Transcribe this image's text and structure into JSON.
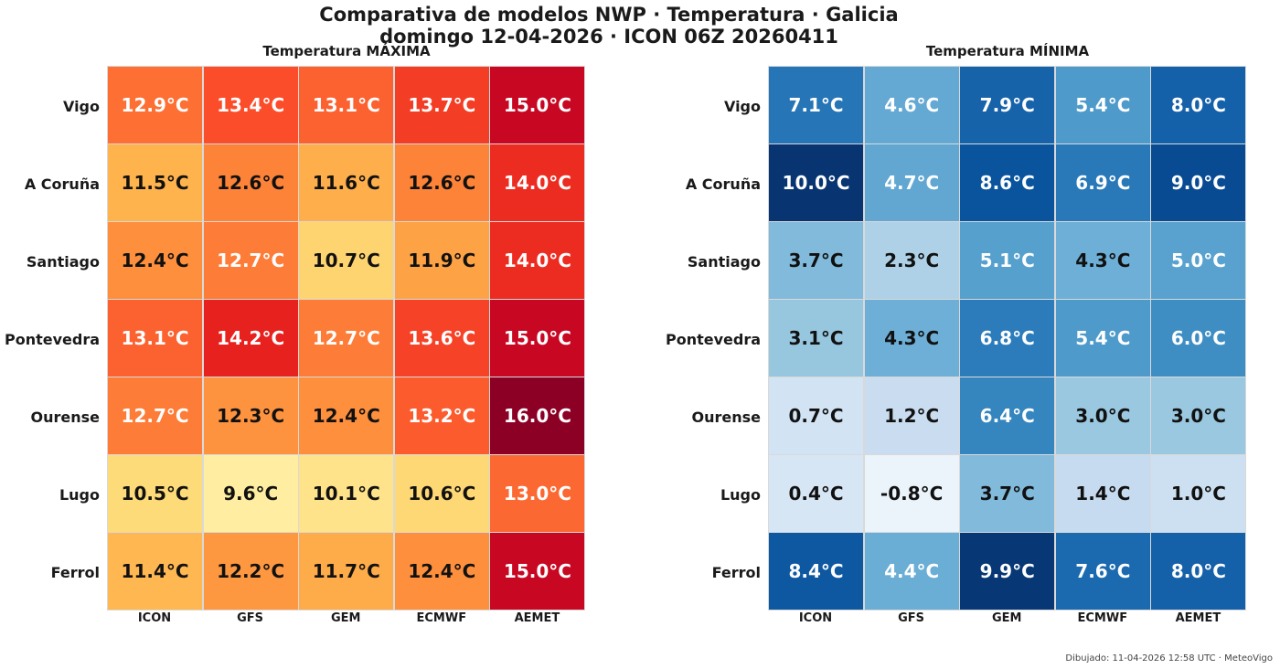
{
  "title_line1": "Comparativa de modelos NWP · Temperatura · Galicia",
  "title_line2": "domingo 12-04-2026  ·  ICON 06Z 20260411",
  "footer": "Dibujado: 11-04-2026 12:58 UTC · MeteoVigo",
  "chart_data": [
    {
      "type": "heatmap",
      "title": "Temperatura MÁXIMA",
      "colormap": "YlOrRd",
      "unit": "°C",
      "rows": [
        "Vigo",
        "A Coruña",
        "Santiago",
        "Pontevedra",
        "Ourense",
        "Lugo",
        "Ferrol"
      ],
      "columns": [
        "ICON",
        "GFS",
        "GEM",
        "ECMWF",
        "AEMET"
      ],
      "values": [
        [
          12.9,
          13.4,
          13.1,
          13.7,
          15.0
        ],
        [
          11.5,
          12.6,
          11.6,
          12.6,
          14.0
        ],
        [
          12.4,
          12.7,
          10.7,
          11.9,
          14.0
        ],
        [
          13.1,
          14.2,
          12.7,
          13.6,
          15.0
        ],
        [
          12.7,
          12.3,
          12.4,
          13.2,
          16.0
        ],
        [
          10.5,
          9.6,
          10.1,
          10.6,
          13.0
        ],
        [
          11.4,
          12.2,
          11.7,
          12.4,
          15.0
        ]
      ]
    },
    {
      "type": "heatmap",
      "title": "Temperatura MÍNIMA",
      "colormap": "Blues",
      "unit": "°C",
      "rows": [
        "Vigo",
        "A Coruña",
        "Santiago",
        "Pontevedra",
        "Ourense",
        "Lugo",
        "Ferrol"
      ],
      "columns": [
        "ICON",
        "GFS",
        "GEM",
        "ECMWF",
        "AEMET"
      ],
      "values": [
        [
          7.1,
          4.6,
          7.9,
          5.4,
          8.0
        ],
        [
          10.0,
          4.7,
          8.6,
          6.9,
          9.0
        ],
        [
          3.7,
          2.3,
          5.1,
          4.3,
          5.0
        ],
        [
          3.1,
          4.3,
          6.8,
          5.4,
          6.0
        ],
        [
          0.7,
          1.2,
          6.4,
          3.0,
          3.0
        ],
        [
          0.4,
          -0.8,
          3.7,
          1.4,
          1.0
        ],
        [
          8.4,
          4.4,
          9.9,
          7.6,
          8.0
        ]
      ]
    }
  ]
}
